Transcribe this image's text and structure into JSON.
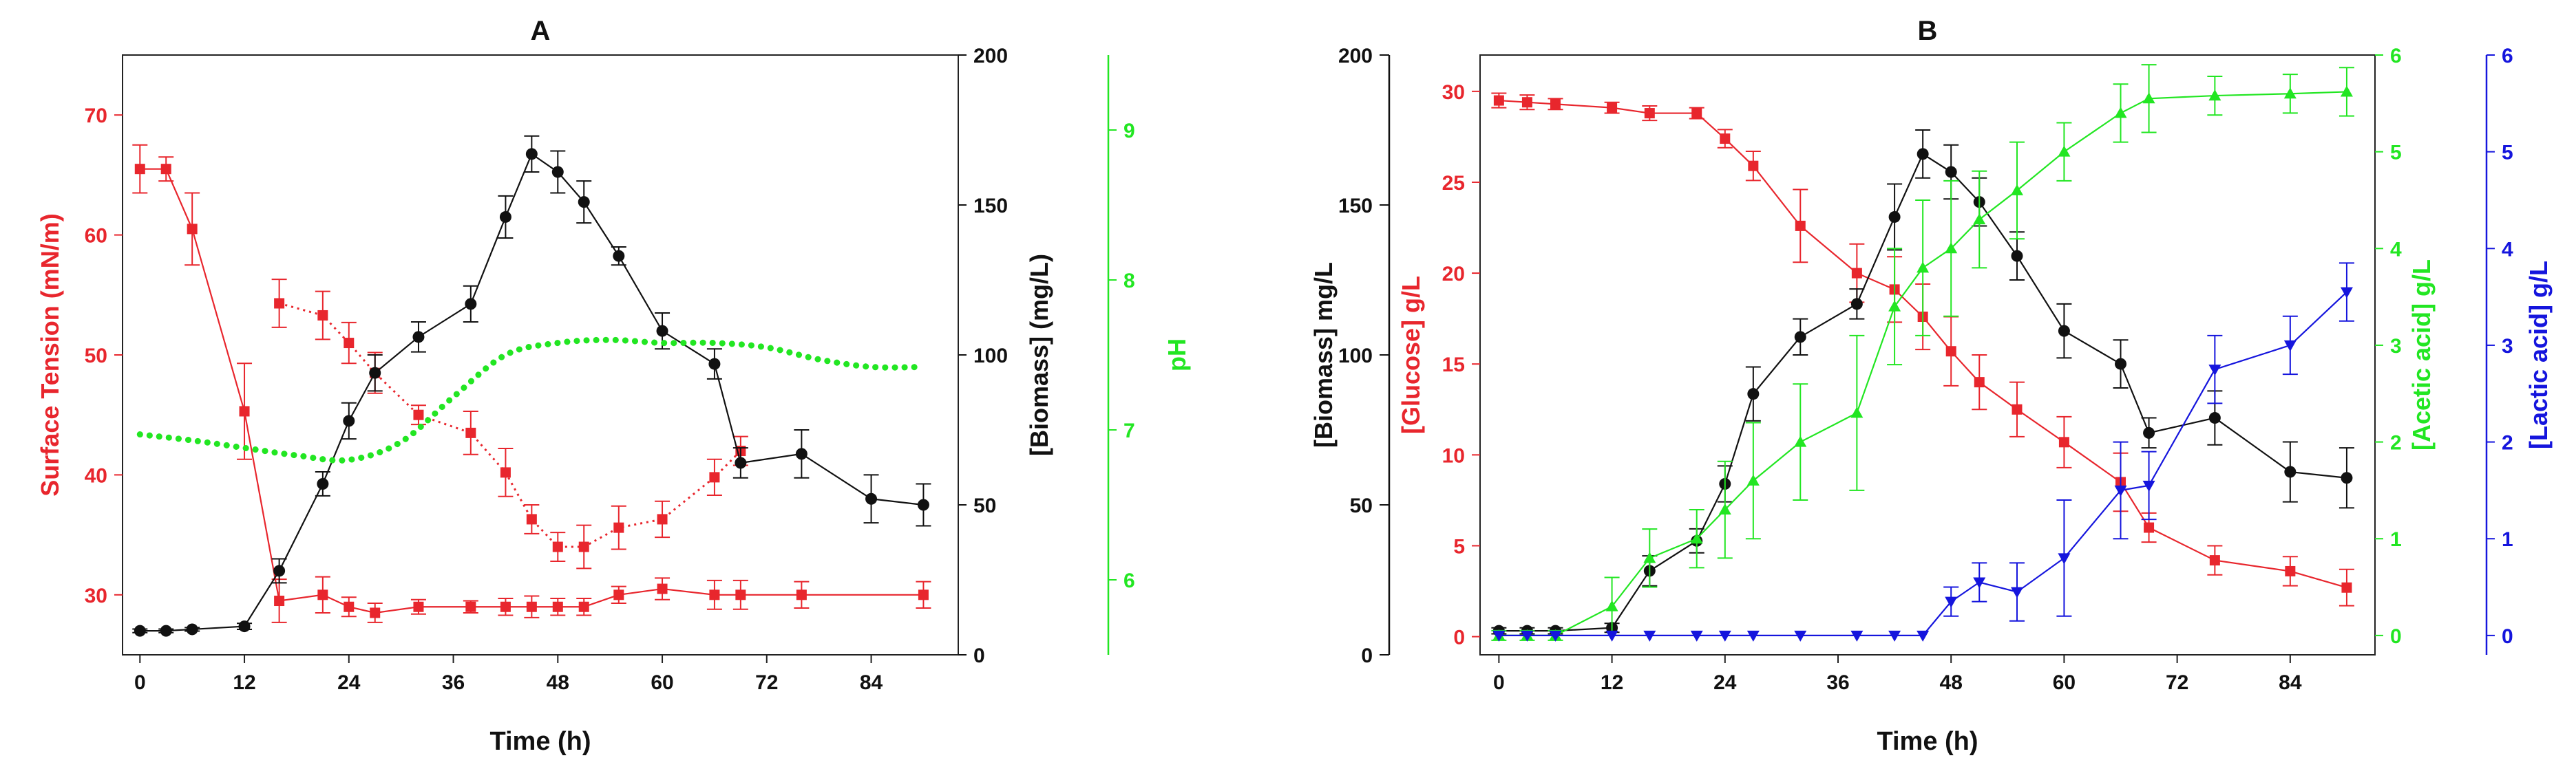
{
  "colors": {
    "red": "#e8262d",
    "black": "#111111",
    "green": "#22e622",
    "blue": "#1515dd"
  },
  "chart_data": [
    {
      "panel": "A",
      "type": "line",
      "title": "A",
      "xlabel": "Time (h)",
      "xlim": [
        -2,
        94
      ],
      "xticks": [
        0,
        12,
        24,
        36,
        48,
        60,
        72,
        84
      ],
      "axes": {
        "left": {
          "label": "Surface Tension (mN/m)",
          "ylim": [
            25,
            75
          ],
          "ticks": [
            30,
            40,
            50,
            60,
            70
          ],
          "color": "red"
        },
        "right1": {
          "label": "[Biomass] (mg/L)",
          "ylim": [
            0,
            200
          ],
          "ticks": [
            0,
            50,
            100,
            150,
            200
          ],
          "color": "black"
        },
        "right2": {
          "label": "pH",
          "ylim": [
            5.5,
            9.5
          ],
          "ticks": [
            6,
            7,
            8,
            9
          ],
          "color": "green"
        }
      },
      "series": [
        {
          "axis": "left",
          "color": "red",
          "style": "solid",
          "marker": "square",
          "x": [
            0,
            3,
            6,
            12,
            16,
            21,
            24,
            27,
            32,
            38,
            42,
            45,
            48,
            51,
            55,
            60,
            66,
            69,
            76,
            90
          ],
          "y": [
            65.5,
            65.5,
            60.5,
            45.3,
            29.5,
            30,
            29,
            28.5,
            29,
            29,
            29,
            29,
            29,
            29,
            30,
            30.5,
            30,
            30,
            30,
            30
          ],
          "err": [
            2,
            1,
            3,
            4,
            1.8,
            1.5,
            0.8,
            0.8,
            0.6,
            0.5,
            0.7,
            0.9,
            0.7,
            0.7,
            0.7,
            0.9,
            1.2,
            1.2,
            1.1,
            1.1
          ]
        },
        {
          "axis": "left",
          "color": "red",
          "style": "dotted",
          "marker": "square",
          "x": [
            16,
            21,
            24,
            27,
            32,
            38,
            42,
            45,
            48,
            51,
            55,
            60,
            66,
            69
          ],
          "y": [
            54.3,
            53.3,
            51,
            48.5,
            45,
            43.5,
            40.2,
            36.3,
            34,
            34,
            35.6,
            36.3,
            39.8,
            42
          ],
          "err": [
            2,
            2,
            1.7,
            1.7,
            0.8,
            1.8,
            2,
            1.2,
            1.2,
            1.8,
            1.8,
            1.5,
            1.5,
            1.2
          ]
        },
        {
          "axis": "right1",
          "color": "black",
          "style": "solid",
          "marker": "circle",
          "x": [
            0,
            3,
            6,
            12,
            16,
            21,
            24,
            27,
            32,
            38,
            42,
            45,
            48,
            51,
            55,
            60,
            66,
            69,
            76,
            84,
            90
          ],
          "y": [
            8,
            8,
            8.5,
            9.5,
            28,
            57,
            78,
            94,
            106,
            117,
            146,
            167,
            161,
            151,
            133,
            108,
            97,
            64,
            67,
            52,
            50
          ],
          "err": [
            0.6,
            0.6,
            0.6,
            1,
            4,
            4,
            6,
            6,
            5,
            6,
            7,
            6,
            7,
            7,
            3,
            6,
            5,
            5,
            8,
            8,
            7
          ]
        },
        {
          "axis": "right2",
          "color": "green",
          "style": "dotted",
          "marker": "none",
          "x": [
            0,
            6,
            12,
            18,
            24,
            30,
            36,
            42,
            48,
            54,
            60,
            66,
            72,
            78,
            84,
            90
          ],
          "y": [
            6.97,
            6.93,
            6.88,
            6.83,
            6.8,
            6.92,
            7.22,
            7.5,
            7.58,
            7.6,
            7.58,
            7.58,
            7.55,
            7.47,
            7.42,
            7.42
          ]
        }
      ]
    },
    {
      "panel": "B",
      "type": "line",
      "title": "B",
      "xlabel": "Time (h)",
      "xlim": [
        -2,
        93
      ],
      "xticks": [
        0,
        12,
        24,
        36,
        48,
        60,
        72,
        84
      ],
      "axes": {
        "left1": {
          "label": "[Biomass] mg/L",
          "ylim": [
            0,
            200
          ],
          "ticks": [
            0,
            50,
            100,
            150,
            200
          ],
          "color": "black"
        },
        "left2": {
          "label": "[Glucose] g/L",
          "ylim": [
            -1,
            32
          ],
          "ticks": [
            0,
            5,
            10,
            15,
            20,
            25,
            30
          ],
          "color": "red"
        },
        "right1": {
          "label": "[Acetic acid] g/L",
          "ylim": [
            -0.2,
            6
          ],
          "ticks": [
            0,
            1,
            2,
            3,
            4,
            5,
            6
          ],
          "color": "green"
        },
        "right2": {
          "label": "[Lactic acid] g/L",
          "ylim": [
            -0.2,
            6
          ],
          "ticks": [
            0,
            1,
            2,
            3,
            4,
            5,
            6
          ],
          "color": "blue"
        }
      },
      "series": [
        {
          "axis": "left2",
          "color": "red",
          "style": "solid",
          "marker": "square",
          "x": [
            0,
            3,
            6,
            12,
            16,
            21,
            24,
            27,
            32,
            38,
            42,
            45,
            48,
            51,
            55,
            60,
            66,
            69,
            76,
            84,
            90
          ],
          "y": [
            29.5,
            29.4,
            29.3,
            29.1,
            28.8,
            28.8,
            27.4,
            25.9,
            22.6,
            20,
            19.1,
            17.6,
            15.7,
            14,
            12.5,
            10.7,
            8.5,
            6,
            4.2,
            3.6,
            2.7
          ],
          "err": [
            0.4,
            0.4,
            0.3,
            0.3,
            0.4,
            0.3,
            0.5,
            0.8,
            2,
            1.6,
            1.8,
            1.8,
            1.9,
            1.5,
            1.5,
            1.4,
            1.6,
            0.8,
            0.8,
            0.8,
            1
          ]
        },
        {
          "axis": "left1",
          "color": "black",
          "style": "solid",
          "marker": "circle",
          "x": [
            0,
            3,
            6,
            12,
            16,
            21,
            24,
            27,
            32,
            38,
            42,
            45,
            48,
            51,
            55,
            60,
            66,
            69,
            76,
            84,
            90
          ],
          "y": [
            8,
            8,
            8,
            9,
            28,
            38,
            57,
            87,
            106,
            117,
            146,
            167,
            161,
            151,
            133,
            108,
            97,
            74,
            79,
            61,
            59
          ],
          "err": [
            1,
            1,
            1,
            1.5,
            5,
            4,
            6,
            9,
            6,
            5,
            11,
            8,
            9,
            8,
            8,
            9,
            8,
            5,
            9,
            10,
            10
          ]
        },
        {
          "axis": "right1",
          "color": "green",
          "style": "solid",
          "marker": "triangle-up",
          "x": [
            0,
            3,
            6,
            12,
            16,
            21,
            24,
            27,
            32,
            38,
            42,
            45,
            48,
            51,
            55,
            60,
            66,
            69,
            76,
            84,
            90
          ],
          "y": [
            0,
            0,
            0,
            0.3,
            0.8,
            1,
            1.3,
            1.6,
            2,
            2.3,
            3.4,
            3.8,
            4,
            4.3,
            4.6,
            5,
            5.4,
            5.55,
            5.58,
            5.6,
            5.62
          ],
          "err": [
            0.05,
            0.05,
            0.05,
            0.3,
            0.3,
            0.3,
            0.5,
            0.6,
            0.6,
            0.8,
            0.6,
            0.7,
            0.7,
            0.5,
            0.5,
            0.3,
            0.3,
            0.35,
            0.2,
            0.2,
            0.25
          ]
        },
        {
          "axis": "right2",
          "color": "blue",
          "style": "solid",
          "marker": "triangle-down",
          "x": [
            0,
            3,
            6,
            12,
            16,
            21,
            24,
            27,
            32,
            38,
            42,
            45,
            48,
            51,
            55,
            60,
            66,
            69,
            76,
            84,
            90
          ],
          "y": [
            0,
            0,
            0,
            0,
            0,
            0,
            0,
            0,
            0,
            0,
            0,
            0,
            0.35,
            0.55,
            0.45,
            0.8,
            1.5,
            1.55,
            2.75,
            3,
            3.55
          ],
          "err": [
            0,
            0,
            0,
            0,
            0,
            0,
            0,
            0,
            0,
            0,
            0,
            0,
            0.15,
            0.2,
            0.3,
            0.6,
            0.5,
            0.35,
            0.35,
            0.3,
            0.3
          ]
        }
      ]
    }
  ]
}
